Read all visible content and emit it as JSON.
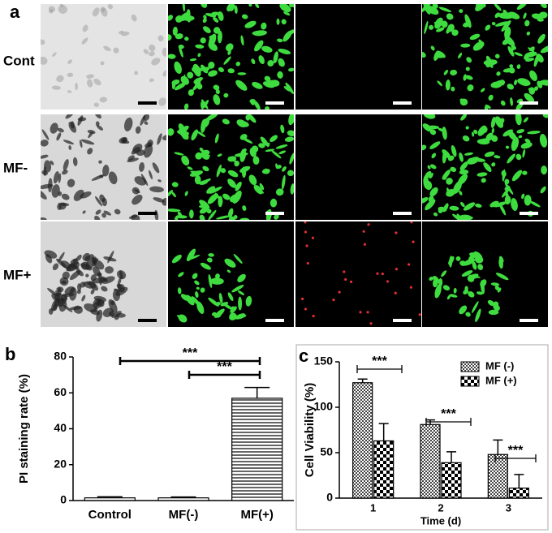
{
  "panel_labels": [
    "a",
    "b",
    "c"
  ],
  "row_labels": [
    "Cont",
    "MF-",
    "MF+"
  ],
  "chart_data": [
    {
      "type": "bar",
      "ylabel": "PI staining rate (%)",
      "categories": [
        "Control",
        "MF(-)",
        "MF(+)"
      ],
      "values": [
        1.5,
        1.5,
        57
      ],
      "errors": [
        0.6,
        0.5,
        6
      ],
      "color": "#000000",
      "ylim": [
        0,
        80
      ],
      "yticks": [
        0,
        20,
        40,
        60,
        80
      ],
      "annotations": [
        "***",
        "***"
      ]
    },
    {
      "type": "grouped_bar",
      "ylabel": "Cell Viability (%)",
      "xlabel": "Time (d)",
      "categories": [
        "1",
        "2",
        "3"
      ],
      "series": [
        {
          "name": "MF (-)",
          "color": "#000000",
          "values": [
            127,
            81,
            48
          ],
          "errors": [
            4,
            5,
            16
          ]
        },
        {
          "name": "MF (+)",
          "color": "#000000",
          "values": [
            63,
            39,
            11
          ],
          "errors": [
            19,
            12,
            15
          ]
        }
      ],
      "ylim": [
        0,
        150
      ],
      "yticks": [
        0,
        50,
        100,
        150
      ],
      "legend": "upper right",
      "annotations": [
        "***",
        "***",
        "***"
      ]
    }
  ]
}
